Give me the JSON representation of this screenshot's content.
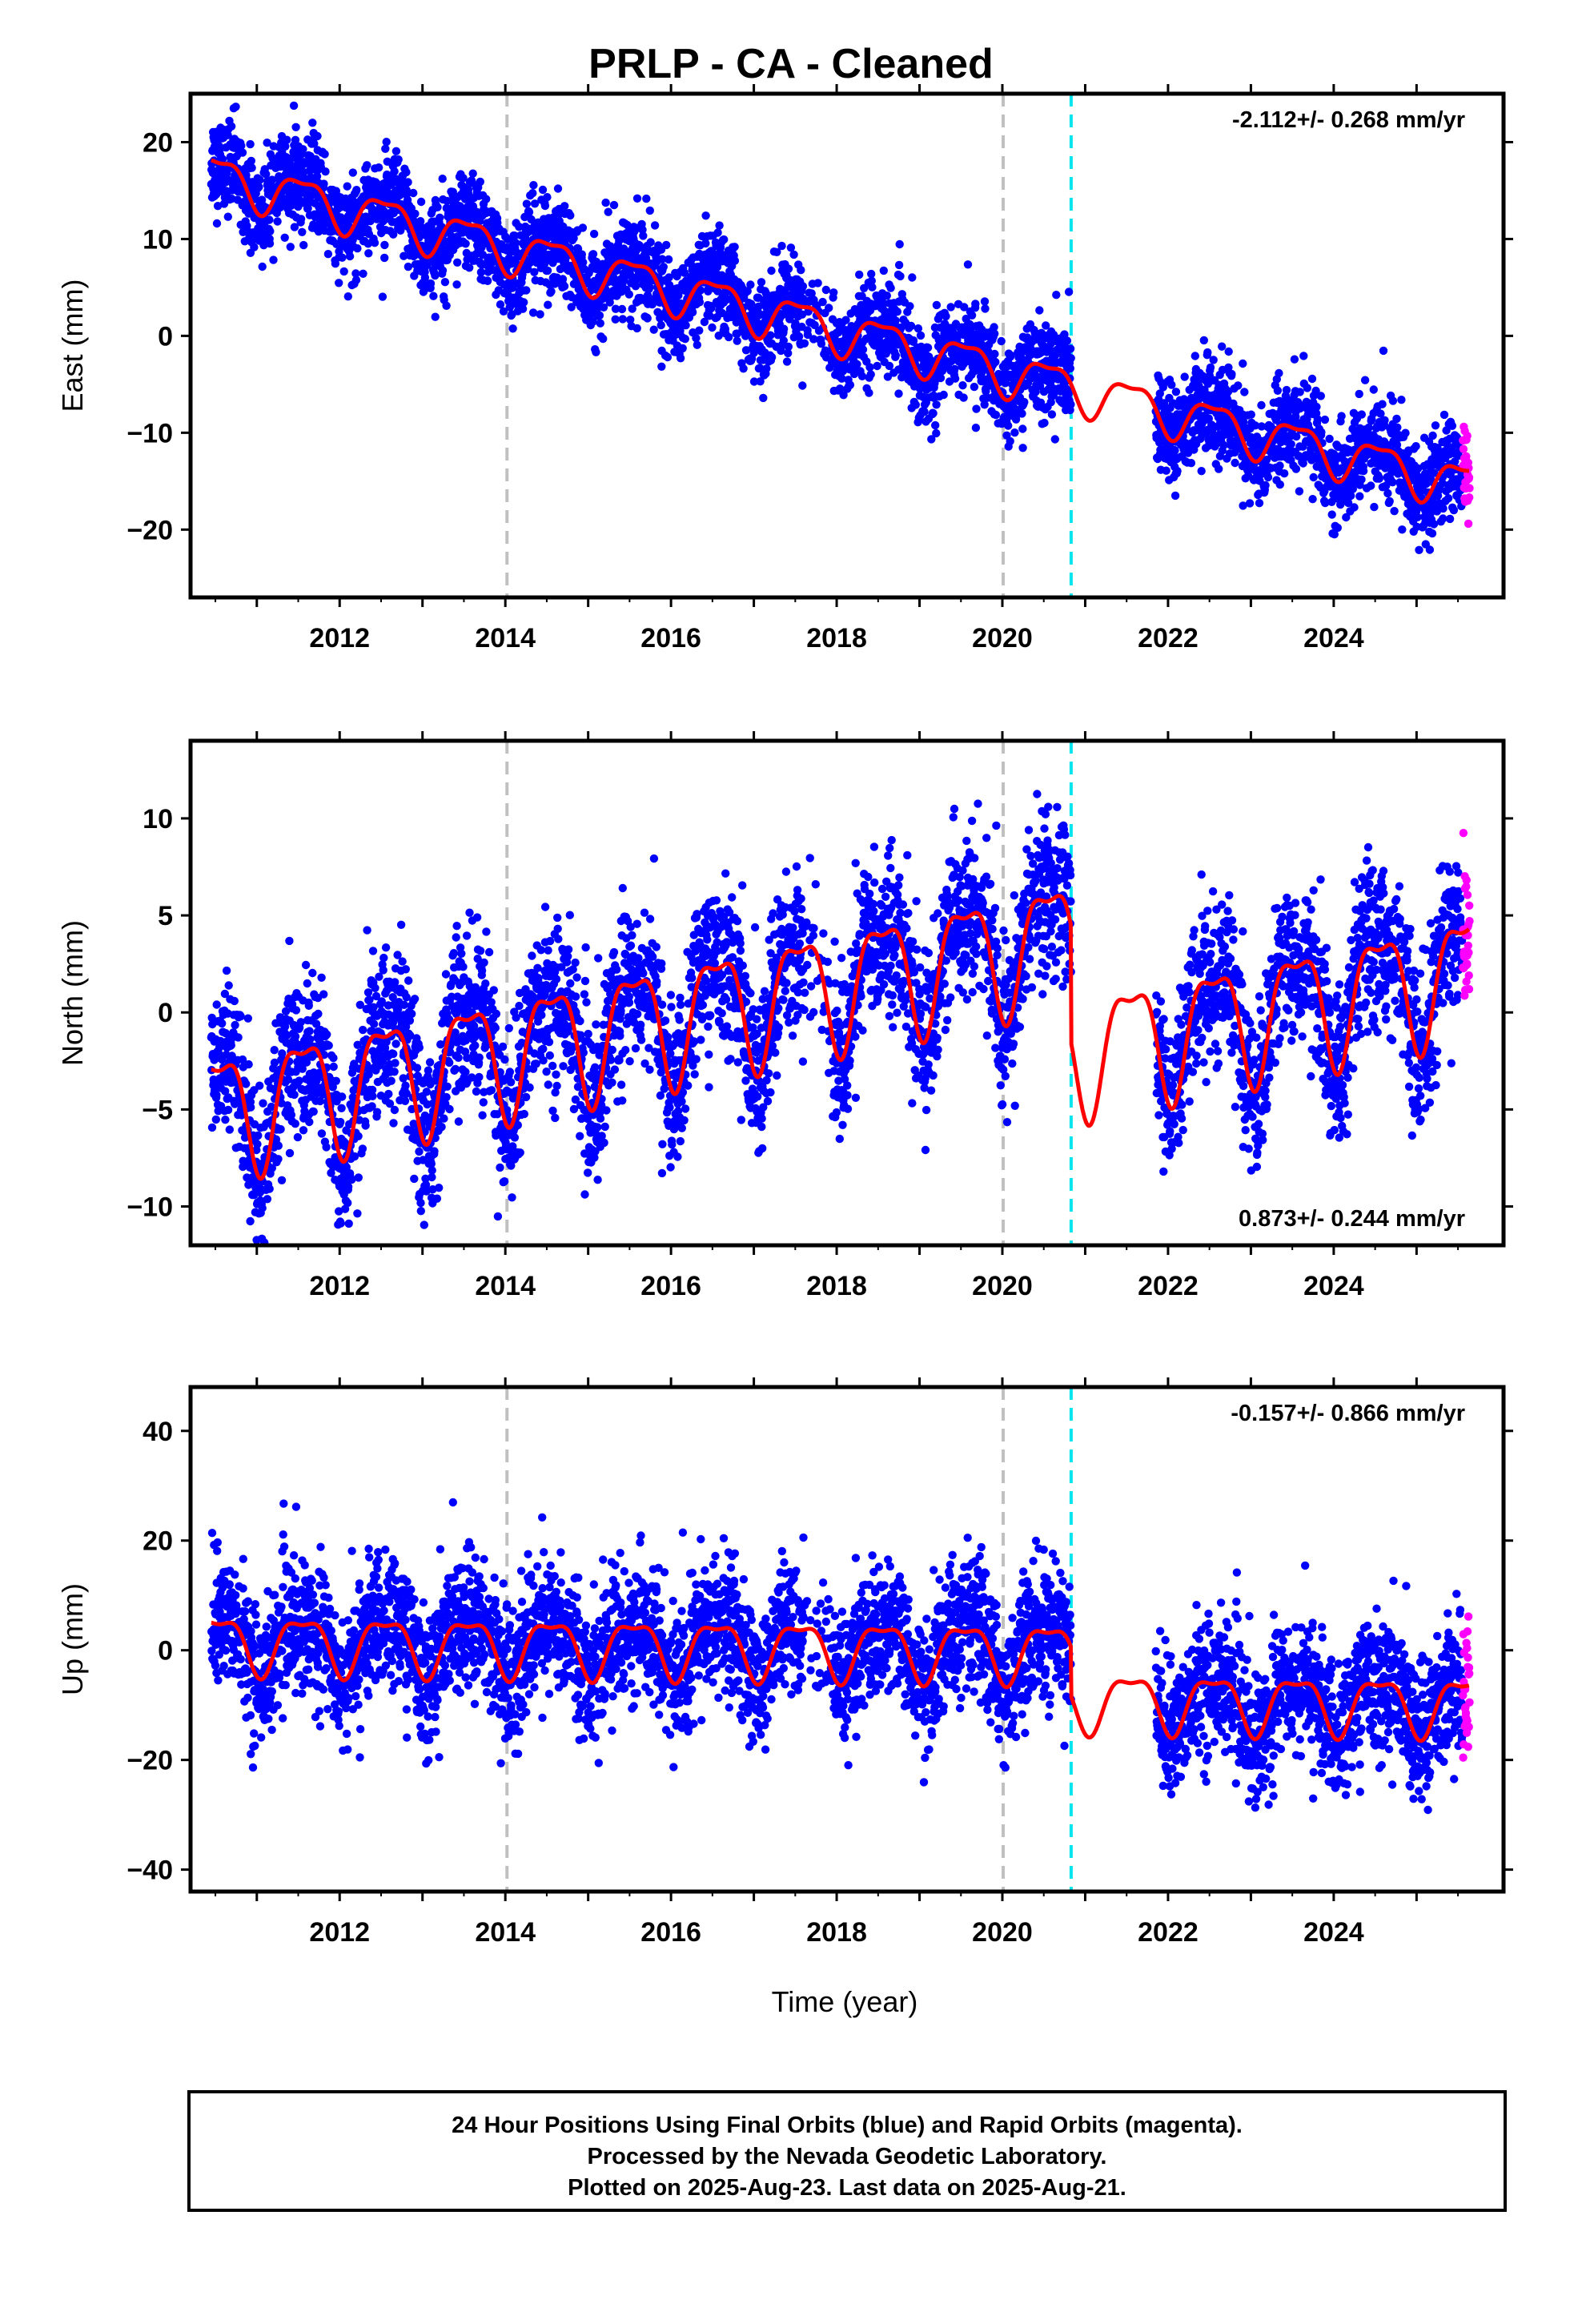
{
  "colors": {
    "final_points": "#0000ff",
    "rapid_points": "#ff00ff",
    "model_line": "#ff0000",
    "equipment_change": "#00e5ee",
    "gap_marker": "#c0c0c0"
  },
  "chart_data": {
    "type": "scatter",
    "title": "PRLP  - CA - Cleaned",
    "xlabel": "Time (year)",
    "xlim": [
      2010.2,
      2026.05
    ],
    "x_ticks": [
      "2012",
      "2014",
      "2016",
      "2018",
      "2020",
      "2022",
      "2024"
    ],
    "vertical_markers": [
      {
        "x": 2014.02,
        "style": "dashed",
        "color": "gray"
      },
      {
        "x": 2020.01,
        "style": "dashed",
        "color": "gray"
      },
      {
        "x": 2020.83,
        "style": "dashed",
        "color": "cyan"
      }
    ],
    "data_gap": [
      2020.83,
      2021.85
    ],
    "series_names": [
      "Final Orbits (blue)",
      "Rapid Orbits (magenta)",
      "Model fit (red)"
    ],
    "panels": [
      {
        "name": "east",
        "ylabel": "East (mm)",
        "ylim": [
          -27,
          25
        ],
        "y_ticks": [
          -20,
          -10,
          0,
          10,
          20
        ],
        "rate_text": "-2.112+/- 0.268 mm/yr",
        "rate_position": "top-right",
        "velocity_mm_per_yr": -2.112,
        "offset_mm": 16.5,
        "seasonal_amplitude_mm": 2.2,
        "scatter_mm": 2.4,
        "model_steps": [
          {
            "x": 2020.83,
            "delta": 0.0
          }
        ]
      },
      {
        "name": "north",
        "ylabel": "North (mm)",
        "ylim": [
          -12,
          14
        ],
        "y_ticks": [
          -10,
          -5,
          0,
          5,
          10
        ],
        "rate_text": "0.873+/- 0.244 mm/yr",
        "rate_position": "bottom-right",
        "velocity_mm_per_yr": 0.873,
        "offset_mm": -5.0,
        "seasonal_amplitude_mm": 3.0,
        "scatter_mm": 2.0,
        "model_steps": [
          {
            "x": 2020.83,
            "delta": -6.0
          }
        ]
      },
      {
        "name": "up",
        "ylabel": "Up (mm)",
        "ylim": [
          -44,
          48
        ],
        "y_ticks": [
          -40,
          -20,
          0,
          20,
          40
        ],
        "rate_text": "-0.157+/- 0.866 mm/yr",
        "rate_position": "top-right",
        "velocity_mm_per_yr": -0.157,
        "offset_mm": 1.5,
        "seasonal_amplitude_mm": 5.0,
        "scatter_mm": 6.0,
        "model_steps": [
          {
            "x": 2020.83,
            "delta": -9.0
          }
        ]
      }
    ],
    "footer": [
      "24 Hour Positions Using Final Orbits (blue) and Rapid Orbits (magenta).",
      "Processed by the Nevada Geodetic Laboratory.",
      "Plotted on 2025-Aug-23. Last data on 2025-Aug-21."
    ]
  }
}
